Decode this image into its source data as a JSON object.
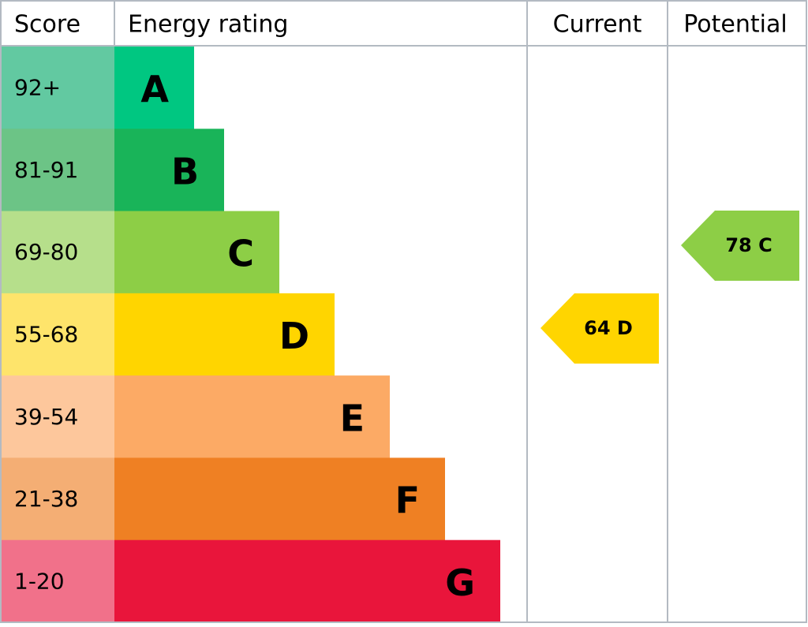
{
  "header": {
    "score": "Score",
    "rating": "Energy rating",
    "current": "Current",
    "potential": "Potential"
  },
  "bands": [
    {
      "score": "92+",
      "letter": "A",
      "color": "#00c781",
      "score_color": "#62c9a1"
    },
    {
      "score": "81-91",
      "letter": "B",
      "color": "#19b459",
      "score_color": "#6cc486"
    },
    {
      "score": "69-80",
      "letter": "C",
      "color": "#8dce46",
      "score_color": "#b6df8b"
    },
    {
      "score": "55-68",
      "letter": "D",
      "color": "#ffd500",
      "score_color": "#fee46b"
    },
    {
      "score": "39-54",
      "letter": "E",
      "color": "#fcaa65",
      "score_color": "#fdc79c"
    },
    {
      "score": "21-38",
      "letter": "F",
      "color": "#ef8023",
      "score_color": "#f4ae74"
    },
    {
      "score": "1-20",
      "letter": "G",
      "color": "#e9153b",
      "score_color": "#f1718a"
    }
  ],
  "current": {
    "label": "64 D"
  },
  "potential": {
    "label": "78 C"
  }
}
